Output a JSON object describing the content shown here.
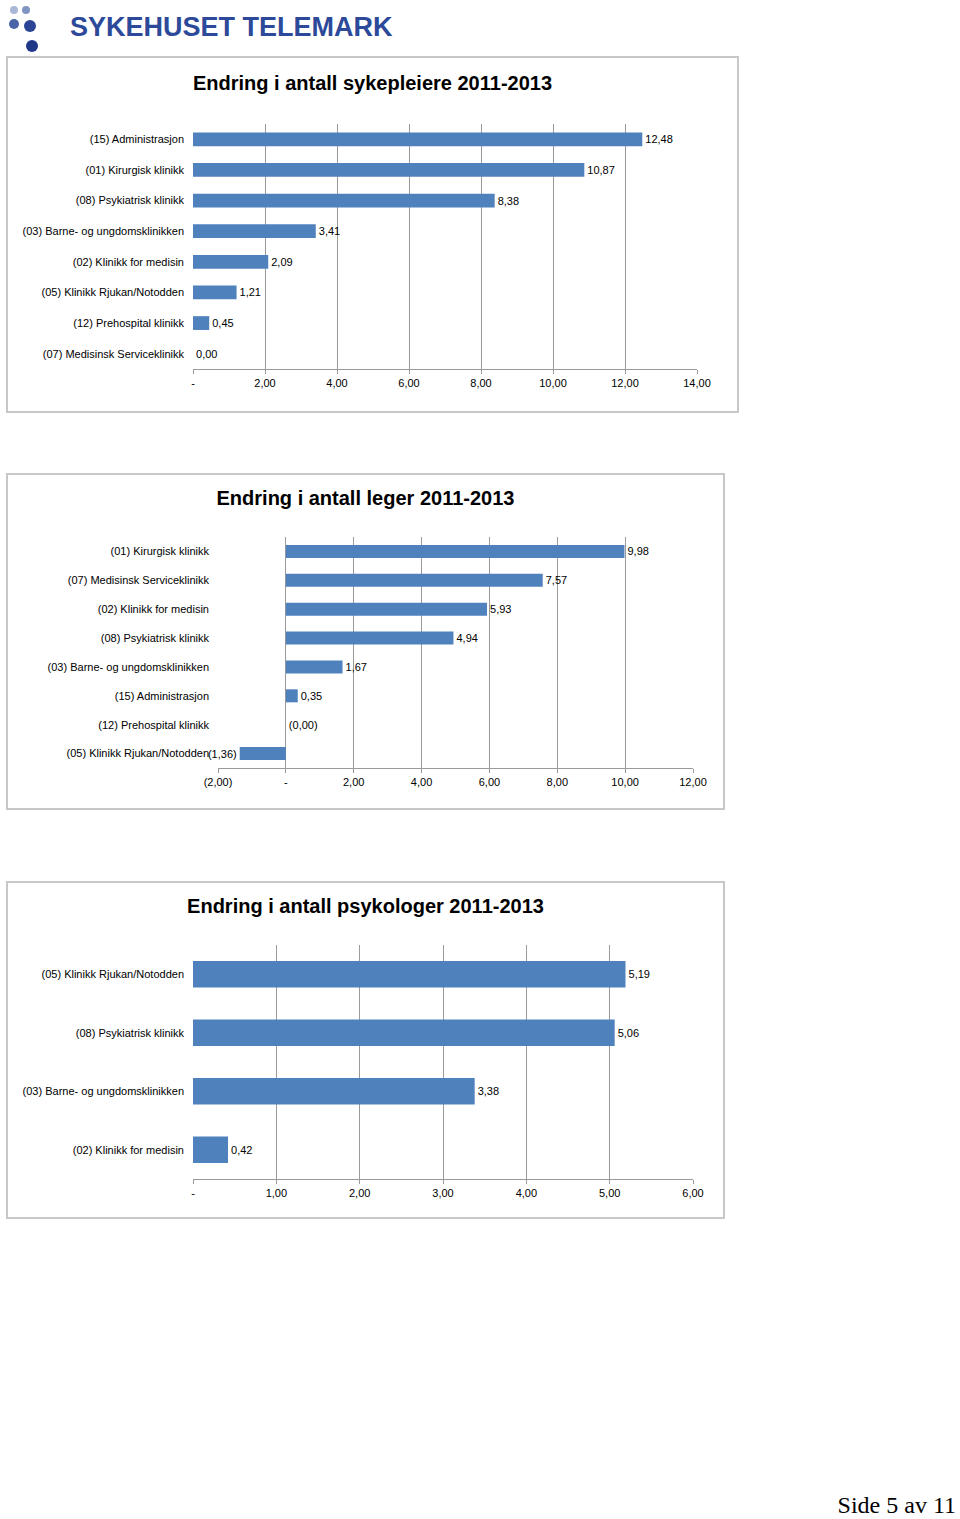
{
  "header": {
    "title": "SYKEHUSET TELEMARK"
  },
  "footer": {
    "text": "Side 5 av 11"
  },
  "chart_data": [
    {
      "type": "bar",
      "orientation": "horizontal",
      "title": "Endring i antall sykepleiere 2011-2013",
      "categories": [
        "(15) Administrasjon",
        "(01) Kirurgisk klinikk",
        "(08) Psykiatrisk klinikk",
        "(03) Barne- og ungdomsklinikken",
        "(02) Klinikk for medisin",
        "(05) Klinikk Rjukan/Notodden",
        "(12) Prehospital klinikk",
        "(07) Medisinsk Serviceklinikk"
      ],
      "values": [
        12.48,
        10.87,
        8.38,
        3.41,
        2.09,
        1.21,
        0.45,
        0.0
      ],
      "value_labels": [
        "12,48",
        "10,87",
        "8,38",
        "3,41",
        "2,09",
        "1,21",
        "0,45",
        "0,00"
      ],
      "color": "#4f81bd",
      "data_labels": true,
      "grid": true,
      "xlim": [
        0,
        14
      ],
      "xticks": [
        {
          "value": 0,
          "label": "-"
        },
        {
          "value": 2,
          "label": "2,00"
        },
        {
          "value": 4,
          "label": "4,00"
        },
        {
          "value": 6,
          "label": "6,00"
        },
        {
          "value": 8,
          "label": "8,00"
        },
        {
          "value": 10,
          "label": "10,00"
        },
        {
          "value": 12,
          "label": "12,00"
        },
        {
          "value": 14,
          "label": "14,00"
        }
      ]
    },
    {
      "type": "bar",
      "orientation": "horizontal",
      "title": "Endring i antall leger 2011-2013",
      "categories": [
        "(01) Kirurgisk klinikk",
        "(07) Medisinsk Serviceklinikk",
        "(02) Klinikk for medisin",
        "(08) Psykiatrisk klinikk",
        "(03) Barne- og ungdomsklinikken",
        "(15) Administrasjon",
        "(12) Prehospital klinikk",
        "(05) Klinikk Rjukan/Notodden"
      ],
      "values": [
        9.98,
        7.57,
        5.93,
        4.94,
        1.67,
        0.35,
        0.0,
        -1.36
      ],
      "value_labels": [
        "9,98",
        "7,57",
        "5,93",
        "4,94",
        "1,67",
        "0,35",
        "(0,00)",
        "(1,36)"
      ],
      "color": "#4f81bd",
      "data_labels": true,
      "grid": true,
      "xlim": [
        -2,
        12
      ],
      "xticks": [
        {
          "value": -2,
          "label": "(2,00)"
        },
        {
          "value": 0,
          "label": "-"
        },
        {
          "value": 2,
          "label": "2,00"
        },
        {
          "value": 4,
          "label": "4,00"
        },
        {
          "value": 6,
          "label": "6,00"
        },
        {
          "value": 8,
          "label": "8,00"
        },
        {
          "value": 10,
          "label": "10,00"
        },
        {
          "value": 12,
          "label": "12,00"
        }
      ]
    },
    {
      "type": "bar",
      "orientation": "horizontal",
      "title": "Endring i antall psykologer 2011-2013",
      "categories": [
        "(05) Klinikk Rjukan/Notodden",
        "(08) Psykiatrisk klinikk",
        "(03) Barne- og ungdomsklinikken",
        "(02) Klinikk for medisin"
      ],
      "values": [
        5.19,
        5.06,
        3.38,
        0.42
      ],
      "value_labels": [
        "5,19",
        "5,06",
        "3,38",
        "0,42"
      ],
      "color": "#4f81bd",
      "data_labels": true,
      "grid": true,
      "xlim": [
        0,
        6
      ],
      "xticks": [
        {
          "value": 0,
          "label": "-"
        },
        {
          "value": 1,
          "label": "1,00"
        },
        {
          "value": 2,
          "label": "2,00"
        },
        {
          "value": 3,
          "label": "3,00"
        },
        {
          "value": 4,
          "label": "4,00"
        },
        {
          "value": 5,
          "label": "5,00"
        },
        {
          "value": 6,
          "label": "6,00"
        }
      ]
    }
  ]
}
